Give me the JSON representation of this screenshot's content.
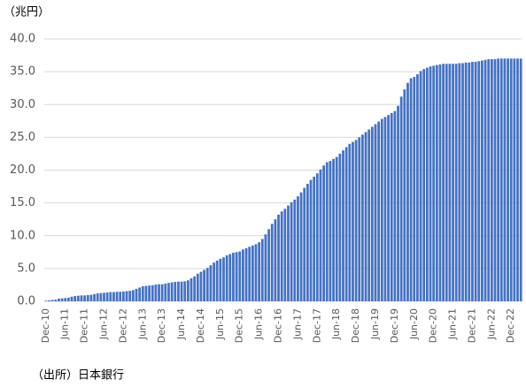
{
  "chart_data": {
    "type": "bar",
    "y_label": "（兆円）",
    "source": "（出所）日本銀行",
    "color": "#4472c4",
    "grid": true,
    "ylim": [
      0,
      40
    ],
    "yticks": [
      {
        "value": 0,
        "label": "0.0"
      },
      {
        "value": 5,
        "label": "5.0"
      },
      {
        "value": 10,
        "label": "10.0"
      },
      {
        "value": 15,
        "label": "15.0"
      },
      {
        "value": 20,
        "label": "20.0"
      },
      {
        "value": 25,
        "label": "25.0"
      },
      {
        "value": 30,
        "label": "30.0"
      },
      {
        "value": 35,
        "label": "35.0"
      },
      {
        "value": 40,
        "label": "40.0"
      }
    ],
    "categories": [
      "Dec-10",
      null,
      null,
      null,
      null,
      null,
      "Jun-11",
      null,
      null,
      null,
      null,
      null,
      "Dec-11",
      null,
      null,
      null,
      null,
      null,
      "Jun-12",
      null,
      null,
      null,
      null,
      null,
      "Dec-12",
      null,
      null,
      null,
      null,
      null,
      "Jun-13",
      null,
      null,
      null,
      null,
      null,
      "Dec-13",
      null,
      null,
      null,
      null,
      null,
      "Jun-14",
      null,
      null,
      null,
      null,
      null,
      "Dec-14",
      null,
      null,
      null,
      null,
      null,
      "Jun-15",
      null,
      null,
      null,
      null,
      null,
      "Dec-15",
      null,
      null,
      null,
      null,
      null,
      "Jun-16",
      null,
      null,
      null,
      null,
      null,
      "Dec-16",
      null,
      null,
      null,
      null,
      null,
      "Jun-17",
      null,
      null,
      null,
      null,
      null,
      "Dec-17",
      null,
      null,
      null,
      null,
      null,
      "Jun-18",
      null,
      null,
      null,
      null,
      null,
      "Dec-18",
      null,
      null,
      null,
      null,
      null,
      "Jun-19",
      null,
      null,
      null,
      null,
      null,
      "Dec-19",
      null,
      null,
      null,
      null,
      null,
      "Jun-20",
      null,
      null,
      null,
      null,
      null,
      "Dec-20",
      null,
      null,
      null,
      null,
      null,
      "Jun-21",
      null,
      null,
      null,
      null,
      null,
      "Dec-21",
      null,
      null,
      null,
      null,
      null,
      "Jun-22",
      null,
      null,
      null,
      null,
      null,
      "Dec-22",
      null,
      null,
      null
    ],
    "values": [
      0.1,
      0.15,
      0.2,
      0.25,
      0.4,
      0.45,
      0.5,
      0.55,
      0.7,
      0.8,
      0.85,
      0.9,
      0.9,
      0.95,
      1.0,
      1.1,
      1.2,
      1.25,
      1.3,
      1.35,
      1.4,
      1.4,
      1.45,
      1.45,
      1.5,
      1.55,
      1.6,
      1.7,
      1.9,
      2.1,
      2.3,
      2.35,
      2.4,
      2.45,
      2.55,
      2.6,
      2.6,
      2.7,
      2.8,
      2.9,
      2.95,
      3.0,
      3.0,
      3.05,
      3.2,
      3.5,
      3.8,
      4.2,
      4.5,
      4.8,
      5.1,
      5.5,
      5.9,
      6.2,
      6.5,
      6.7,
      7.0,
      7.2,
      7.4,
      7.5,
      7.6,
      7.9,
      8.1,
      8.3,
      8.5,
      8.7,
      9.0,
      9.5,
      10.2,
      11.0,
      11.8,
      12.5,
      13.2,
      13.7,
      14.1,
      14.6,
      15.1,
      15.5,
      16.0,
      16.6,
      17.3,
      17.9,
      18.5,
      19.0,
      19.5,
      20.1,
      20.7,
      21.2,
      21.4,
      21.7,
      22.0,
      22.5,
      23.0,
      23.5,
      24.0,
      24.3,
      24.6,
      25.0,
      25.4,
      25.8,
      26.2,
      26.6,
      27.0,
      27.4,
      27.8,
      28.1,
      28.4,
      28.7,
      29.0,
      29.8,
      31.2,
      32.3,
      33.3,
      34.0,
      34.2,
      34.6,
      35.1,
      35.4,
      35.6,
      35.8,
      35.9,
      36.0,
      36.1,
      36.2,
      36.2,
      36.2,
      36.2,
      36.2,
      36.3,
      36.3,
      36.4,
      36.4,
      36.5,
      36.5,
      36.6,
      36.7,
      36.8,
      36.9,
      36.9,
      36.9,
      37.0,
      37.0,
      37.0,
      37.0,
      37.0,
      37.0,
      37.0,
      37.0
    ]
  }
}
